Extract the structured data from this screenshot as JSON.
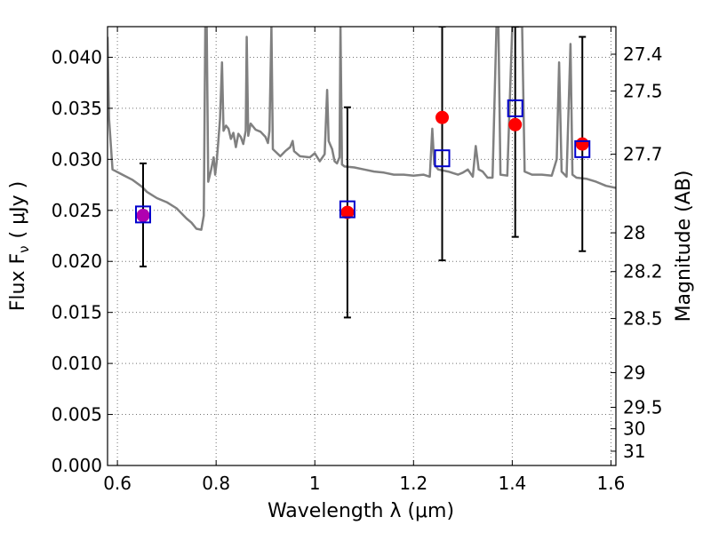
{
  "chart_data": {
    "type": "scatter",
    "xlabel": "Wavelength  λ (μm)",
    "ylabel": "Flux  F",
    "ylabel_sub": "ν",
    "ylabel_unit": "( μJy )",
    "y2label": "Magnitude (AB)",
    "xlim": [
      0.58,
      1.61
    ],
    "ylim": [
      0.0,
      0.043
    ],
    "grid": true,
    "x_ticks": [
      {
        "value": 0.6,
        "label": "0.6"
      },
      {
        "value": 0.8,
        "label": "0.8"
      },
      {
        "value": 1.0,
        "label": "1"
      },
      {
        "value": 1.2,
        "label": "1.2"
      },
      {
        "value": 1.4,
        "label": "1.4"
      },
      {
        "value": 1.6,
        "label": "1.6"
      }
    ],
    "y_ticks": [
      {
        "value": 0.0,
        "label": "0.000"
      },
      {
        "value": 0.005,
        "label": "0.005"
      },
      {
        "value": 0.01,
        "label": "0.010"
      },
      {
        "value": 0.015,
        "label": "0.015"
      },
      {
        "value": 0.02,
        "label": "0.020"
      },
      {
        "value": 0.025,
        "label": "0.025"
      },
      {
        "value": 0.03,
        "label": "0.030"
      },
      {
        "value": 0.035,
        "label": "0.035"
      },
      {
        "value": 0.04,
        "label": "0.040"
      }
    ],
    "y2_ticks": [
      {
        "flux": 0.0403,
        "label": "27.4"
      },
      {
        "flux": 0.0367,
        "label": "27.5"
      },
      {
        "flux": 0.0305,
        "label": "27.7"
      },
      {
        "flux": 0.0228,
        "label": "28"
      },
      {
        "flux": 0.019,
        "label": "28.2"
      },
      {
        "flux": 0.0144,
        "label": "28.5"
      },
      {
        "flux": 0.0091,
        "label": "29"
      },
      {
        "flux": 0.0057,
        "label": "29.5"
      },
      {
        "flux": 0.0036,
        "label": "30"
      },
      {
        "flux": 0.0014,
        "label": "31"
      }
    ],
    "series": [
      {
        "kind": "template",
        "color": "#808080",
        "points": [
          [
            0.58,
            0.042
          ],
          [
            0.583,
            0.034
          ],
          [
            0.59,
            0.029
          ],
          [
            0.61,
            0.0285
          ],
          [
            0.63,
            0.028
          ],
          [
            0.65,
            0.0273
          ],
          [
            0.66,
            0.0268
          ],
          [
            0.68,
            0.0262
          ],
          [
            0.7,
            0.0258
          ],
          [
            0.72,
            0.0252
          ],
          [
            0.74,
            0.0242
          ],
          [
            0.75,
            0.0238
          ],
          [
            0.76,
            0.0232
          ],
          [
            0.77,
            0.0231
          ],
          [
            0.775,
            0.0245
          ],
          [
            0.778,
            0.043
          ],
          [
            0.781,
            0.043
          ],
          [
            0.784,
            0.0278
          ],
          [
            0.79,
            0.029
          ],
          [
            0.795,
            0.0302
          ],
          [
            0.798,
            0.0285
          ],
          [
            0.801,
            0.0297
          ],
          [
            0.804,
            0.0315
          ],
          [
            0.808,
            0.034
          ],
          [
            0.812,
            0.0395
          ],
          [
            0.815,
            0.0328
          ],
          [
            0.82,
            0.0333
          ],
          [
            0.825,
            0.033
          ],
          [
            0.83,
            0.032
          ],
          [
            0.835,
            0.0326
          ],
          [
            0.84,
            0.0312
          ],
          [
            0.845,
            0.0325
          ],
          [
            0.85,
            0.0322
          ],
          [
            0.855,
            0.0315
          ],
          [
            0.86,
            0.0328
          ],
          [
            0.862,
            0.042
          ],
          [
            0.865,
            0.0323
          ],
          [
            0.87,
            0.0335
          ],
          [
            0.88,
            0.0329
          ],
          [
            0.89,
            0.0327
          ],
          [
            0.9,
            0.0322
          ],
          [
            0.905,
            0.0316
          ],
          [
            0.908,
            0.0328
          ],
          [
            0.912,
            0.043
          ],
          [
            0.915,
            0.031
          ],
          [
            0.93,
            0.0303
          ],
          [
            0.94,
            0.0308
          ],
          [
            0.95,
            0.0312
          ],
          [
            0.955,
            0.0318
          ],
          [
            0.958,
            0.0308
          ],
          [
            0.97,
            0.0303
          ],
          [
            0.99,
            0.0302
          ],
          [
            1.0,
            0.0306
          ],
          [
            1.01,
            0.0298
          ],
          [
            1.02,
            0.0305
          ],
          [
            1.025,
            0.0368
          ],
          [
            1.028,
            0.0318
          ],
          [
            1.035,
            0.031
          ],
          [
            1.04,
            0.0298
          ],
          [
            1.045,
            0.0296
          ],
          [
            1.05,
            0.0302
          ],
          [
            1.052,
            0.043
          ],
          [
            1.055,
            0.0295
          ],
          [
            1.06,
            0.0293
          ],
          [
            1.08,
            0.0292
          ],
          [
            1.1,
            0.029
          ],
          [
            1.12,
            0.0288
          ],
          [
            1.14,
            0.0287
          ],
          [
            1.16,
            0.0285
          ],
          [
            1.18,
            0.0285
          ],
          [
            1.2,
            0.0284
          ],
          [
            1.22,
            0.0285
          ],
          [
            1.233,
            0.0283
          ],
          [
            1.238,
            0.033
          ],
          [
            1.242,
            0.0295
          ],
          [
            1.25,
            0.029
          ],
          [
            1.27,
            0.0288
          ],
          [
            1.29,
            0.0285
          ],
          [
            1.3,
            0.0287
          ],
          [
            1.31,
            0.029
          ],
          [
            1.32,
            0.0283
          ],
          [
            1.326,
            0.0313
          ],
          [
            1.332,
            0.029
          ],
          [
            1.34,
            0.0288
          ],
          [
            1.35,
            0.0282
          ],
          [
            1.36,
            0.0282
          ],
          [
            1.368,
            0.043
          ],
          [
            1.372,
            0.043
          ],
          [
            1.376,
            0.0285
          ],
          [
            1.39,
            0.0284
          ],
          [
            1.4,
            0.043
          ],
          [
            1.42,
            0.043
          ],
          [
            1.425,
            0.0288
          ],
          [
            1.44,
            0.0285
          ],
          [
            1.46,
            0.0285
          ],
          [
            1.48,
            0.0284
          ],
          [
            1.49,
            0.03
          ],
          [
            1.495,
            0.0395
          ],
          [
            1.5,
            0.0288
          ],
          [
            1.51,
            0.0283
          ],
          [
            1.518,
            0.0413
          ],
          [
            1.522,
            0.0285
          ],
          [
            1.53,
            0.0282
          ],
          [
            1.55,
            0.0281
          ],
          [
            1.57,
            0.0278
          ],
          [
            1.59,
            0.0274
          ],
          [
            1.61,
            0.0272
          ]
        ]
      },
      {
        "kind": "model-squares",
        "color": "#0000cc",
        "points": [
          [
            0.652,
            0.0246
          ],
          [
            1.066,
            0.0251
          ],
          [
            1.258,
            0.0301
          ],
          [
            1.406,
            0.035
          ],
          [
            1.542,
            0.031
          ]
        ]
      },
      {
        "kind": "observed",
        "color": "#ff0000",
        "points": [
          {
            "x": 0.652,
            "y": 0.0245,
            "ylo": 0.0195,
            "yhi": 0.0296,
            "fill": "#b000b0"
          },
          {
            "x": 1.066,
            "y": 0.0248,
            "ylo": 0.0145,
            "yhi": 0.0351,
            "fill": "#ff0000"
          },
          {
            "x": 1.258,
            "y": 0.0341,
            "ylo": 0.0201,
            "yhi": 0.043,
            "fill": "#ff0000"
          },
          {
            "x": 1.406,
            "y": 0.0334,
            "ylo": 0.0224,
            "yhi": 0.043,
            "fill": "#ff0000"
          },
          {
            "x": 1.542,
            "y": 0.0315,
            "ylo": 0.021,
            "yhi": 0.042,
            "fill": "#ff0000"
          }
        ]
      }
    ]
  }
}
